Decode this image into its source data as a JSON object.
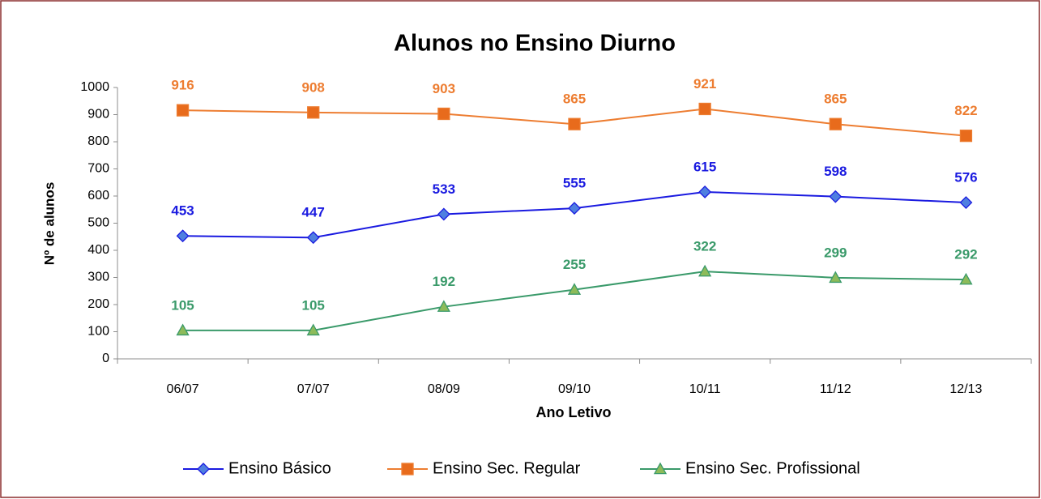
{
  "chart_data": {
    "type": "line",
    "title": "Alunos no Ensino Diurno",
    "x_label": "Ano Letivo",
    "y_label": "Nº de alunos",
    "categories": [
      "06/07",
      "07/07",
      "08/09",
      "09/10",
      "10/11",
      "11/12",
      "12/13"
    ],
    "series": [
      {
        "name": "Ensino Básico",
        "color": "#1a1ae0",
        "marker": "diamond",
        "marker_fill": "#4f7fe0",
        "values": [
          453,
          447,
          533,
          555,
          615,
          598,
          576
        ]
      },
      {
        "name": "Ensino Sec. Regular",
        "color": "#ed7d31",
        "marker": "square",
        "marker_fill": "#e86b1c",
        "values": [
          916,
          908,
          903,
          865,
          921,
          865,
          822
        ]
      },
      {
        "name": "Ensino Sec. Profissional",
        "color": "#3a9a6a",
        "marker": "triangle",
        "marker_fill": "#8dbb5a",
        "values": [
          105,
          105,
          192,
          255,
          322,
          299,
          292
        ]
      }
    ],
    "ylim": [
      0,
      1000
    ],
    "yticks": [
      0,
      100,
      200,
      300,
      400,
      500,
      600,
      700,
      800,
      900,
      1000
    ],
    "grid": false,
    "legend": "bottom"
  }
}
